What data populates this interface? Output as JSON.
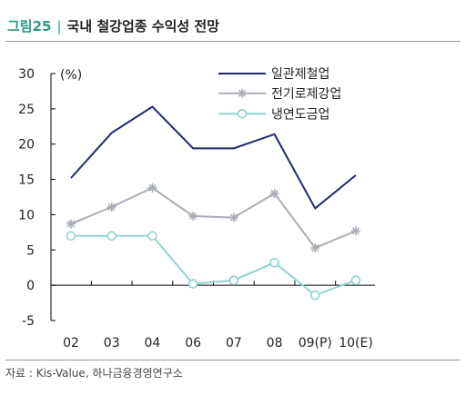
{
  "header": {
    "figure_number": "그림25",
    "separator": "|",
    "title": "국내 철강업종 수익성 전망"
  },
  "source": "자료 : Kis-Value, 하나금융경영연구소",
  "chart_data": {
    "type": "line",
    "categories": [
      "02",
      "03",
      "04",
      "06",
      "07",
      "08",
      "09(P)",
      "10(E)"
    ],
    "unit_label": "(%)",
    "ylim": [
      -5,
      30
    ],
    "yticks": [
      -5,
      0,
      5,
      10,
      15,
      20,
      25,
      30
    ],
    "grid": false,
    "legend_position": "top-right",
    "series": [
      {
        "name": "일관제철업",
        "color": "#1f2a6e",
        "marker": "none",
        "values": [
          15.2,
          21.6,
          25.3,
          19.4,
          19.4,
          21.4,
          10.9,
          15.6
        ]
      },
      {
        "name": "전기로제강업",
        "color": "#a9adb8",
        "marker": "asterisk",
        "values": [
          8.7,
          11.1,
          13.8,
          9.8,
          9.6,
          13.0,
          5.3,
          7.7
        ]
      },
      {
        "name": "냉연도금업",
        "color": "#8fd3d0",
        "marker": "circle",
        "values": [
          7.0,
          7.0,
          7.0,
          0.2,
          0.7,
          3.2,
          -1.4,
          0.7
        ]
      }
    ]
  }
}
